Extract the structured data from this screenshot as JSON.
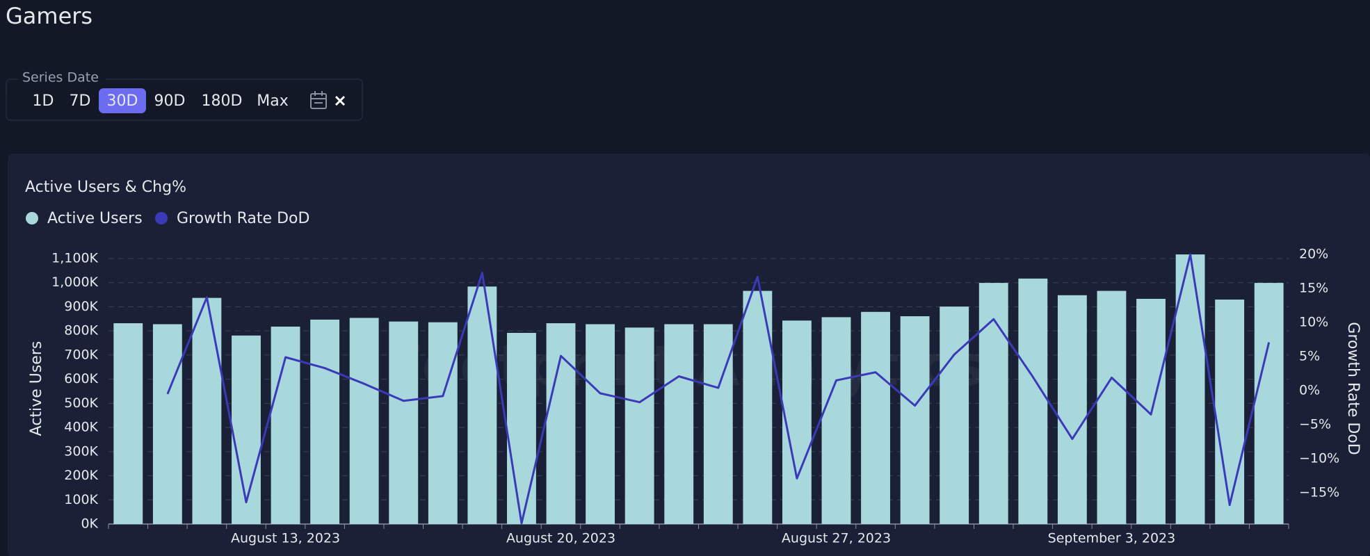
{
  "page_title": "Gamers",
  "controls": {
    "label": "Series Date",
    "options": [
      "1D",
      "7D",
      "30D",
      "90D",
      "180D",
      "Max"
    ],
    "selected": 2
  },
  "watermark": "Footprint Analytics",
  "chart_data": {
    "type": "bar_line",
    "title": "Active Users & Chg%",
    "categories": [
      null,
      null,
      null,
      null,
      "August 13, 2023",
      null,
      null,
      null,
      null,
      null,
      null,
      "August 20, 2023",
      null,
      null,
      null,
      null,
      null,
      null,
      "August 27, 2023",
      null,
      null,
      null,
      null,
      null,
      null,
      "September 3, 2023",
      null,
      null,
      null,
      null
    ],
    "series": [
      {
        "name": "Active Users",
        "type": "bar",
        "color": "#a8d8dc",
        "values": [
          832000,
          828000,
          937000,
          781000,
          818000,
          847000,
          854000,
          839000,
          836000,
          984000,
          792000,
          832000,
          828000,
          814000,
          828000,
          828000,
          966000,
          843000,
          857000,
          879000,
          861000,
          901000,
          999000,
          1017000,
          948000,
          966000,
          933000,
          1117000,
          930000,
          999000
        ]
      },
      {
        "name": "Growth Rate DoD",
        "type": "line",
        "axis": "y2",
        "color": "#3a3ab8",
        "values": [
          null,
          -0.5,
          13.7,
          -16.4,
          4.9,
          3.3,
          1.0,
          -1.5,
          -0.8,
          17.3,
          -19.5,
          5.1,
          -0.4,
          -1.7,
          2.1,
          0.4,
          16.7,
          -12.9,
          1.5,
          2.7,
          -2.2,
          5.3,
          10.5,
          2.0,
          -7.1,
          1.9,
          -3.5,
          20.0,
          -16.8,
          7.1
        ]
      }
    ],
    "ylabel": "Active Users",
    "y2label": "Growth Rate DoD",
    "ylim": [
      0,
      1100000
    ],
    "yticks": [
      {
        "value": 0,
        "label": "0K"
      },
      {
        "value": 100000,
        "label": "100K"
      },
      {
        "value": 200000,
        "label": "200K"
      },
      {
        "value": 300000,
        "label": "300K"
      },
      {
        "value": 400000,
        "label": "400K"
      },
      {
        "value": 500000,
        "label": "500K"
      },
      {
        "value": 600000,
        "label": "600K"
      },
      {
        "value": 700000,
        "label": "700K"
      },
      {
        "value": 800000,
        "label": "800K"
      },
      {
        "value": 900000,
        "label": "900K"
      },
      {
        "value": 1000000,
        "label": "1,000K"
      },
      {
        "value": 1100000,
        "label": "1,100K"
      }
    ],
    "y2lim": [
      -19.6,
      19.4
    ],
    "y2ticks": [
      {
        "value": -15,
        "label": "−15%"
      },
      {
        "value": -10,
        "label": "−10%"
      },
      {
        "value": -5,
        "label": "−5%"
      },
      {
        "value": 0,
        "label": "0%"
      },
      {
        "value": 5,
        "label": "5%"
      },
      {
        "value": 10,
        "label": "10%"
      },
      {
        "value": 15,
        "label": "15%"
      },
      {
        "value": 20,
        "label": "20%"
      }
    ],
    "grid": true,
    "legend": "top-left"
  }
}
